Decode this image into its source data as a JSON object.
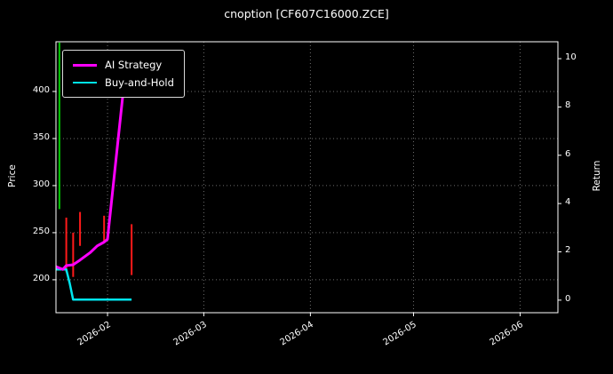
{
  "title": "cnoption [CF607C16000.ZCE]",
  "legend": {
    "items": [
      {
        "label": "AI Strategy"
      },
      {
        "label": "Buy-and-Hold"
      }
    ]
  },
  "axes": {
    "left_label": "Price",
    "right_label": "Return"
  },
  "chart_data": {
    "type": "line",
    "title": "cnoption [CF607C16000.ZCE]",
    "background": "#000000",
    "grid": {
      "color": "#6e6e6e",
      "style": "dotted"
    },
    "x_range": [
      "2026-01-17",
      "2026-06-12"
    ],
    "x_ticks": [
      {
        "label": "2026-02",
        "date": "2026-02-01"
      },
      {
        "label": "2026-03",
        "date": "2026-03-01"
      },
      {
        "label": "2026-04",
        "date": "2026-04-01"
      },
      {
        "label": "2026-05",
        "date": "2026-05-01"
      },
      {
        "label": "2026-06",
        "date": "2026-06-01"
      }
    ],
    "left_axis": {
      "label": "Price",
      "ticks": [
        200,
        250,
        300,
        350,
        400
      ],
      "range": [
        165,
        452.8
      ]
    },
    "right_axis": {
      "label": "Return",
      "ticks": [
        0,
        2,
        4,
        6,
        8,
        10
      ],
      "range": [
        -0.52,
        10.7
      ]
    },
    "series": [
      {
        "name": "AI Strategy",
        "color": "#ff00ff",
        "width": 3,
        "points": [
          [
            "2026-01-17",
            214
          ],
          [
            "2026-01-19",
            211
          ],
          [
            "2026-01-20",
            215
          ],
          [
            "2026-01-22",
            216
          ],
          [
            "2026-01-24",
            221
          ],
          [
            "2026-01-27",
            229
          ],
          [
            "2026-01-29",
            236
          ],
          [
            "2026-01-31",
            240
          ],
          [
            "2026-02-01",
            243
          ],
          [
            "2026-02-06",
            415
          ]
        ]
      },
      {
        "name": "Buy-and-Hold",
        "color": "#00e5ee",
        "width": 2.5,
        "points": [
          [
            "2026-01-17",
            211
          ],
          [
            "2026-01-20",
            211
          ],
          [
            "2026-01-21",
            196
          ],
          [
            "2026-01-22",
            179
          ],
          [
            "2026-02-08",
            179
          ]
        ]
      }
    ],
    "candles": [
      {
        "date": "2026-01-18",
        "high": 452,
        "low": 275,
        "color": "#00c800"
      },
      {
        "date": "2026-01-20",
        "high": 266,
        "low": 208,
        "color": "#ff1a1a"
      },
      {
        "date": "2026-01-22",
        "high": 250,
        "low": 203,
        "color": "#ff1a1a"
      },
      {
        "date": "2026-01-24",
        "high": 272,
        "low": 236,
        "color": "#ff1a1a"
      },
      {
        "date": "2026-01-31",
        "high": 268,
        "low": 240,
        "color": "#ff1a1a"
      },
      {
        "date": "2026-02-08",
        "high": 259,
        "low": 205,
        "color": "#ff1a1a"
      }
    ]
  }
}
